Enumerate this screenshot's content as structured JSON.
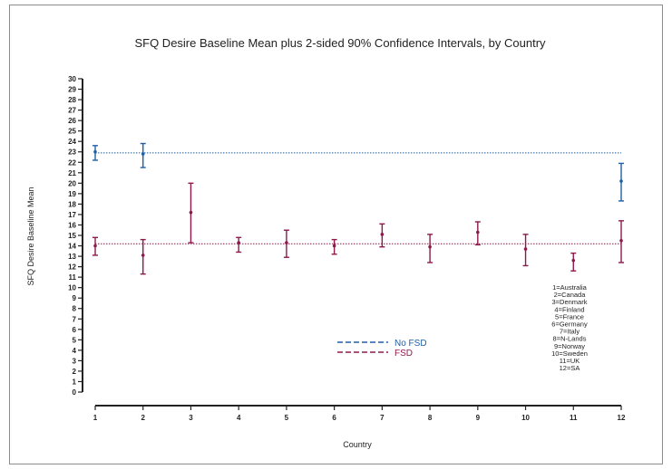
{
  "chart_data": {
    "type": "scatter",
    "title": "SFQ Desire Baseline Mean plus 2-sided 90% Confidence Intervals, by Country",
    "xlabel": "Country",
    "ylabel": "SFQ Desire Baseline Mean",
    "x_ticks": [
      "1",
      "2",
      "3",
      "4",
      "5",
      "6",
      "7",
      "8",
      "9",
      "10",
      "11",
      "12"
    ],
    "y_ticks": [
      "0",
      "1",
      "2",
      "3",
      "4",
      "5",
      "6",
      "7",
      "8",
      "9",
      "10",
      "11",
      "12",
      "13",
      "14",
      "15",
      "16",
      "17",
      "18",
      "19",
      "20",
      "21",
      "22",
      "23",
      "24",
      "25",
      "26",
      "27",
      "28",
      "29",
      "30"
    ],
    "ylim": [
      0,
      30
    ],
    "xlim": [
      1,
      12
    ],
    "series": [
      {
        "name": "No FSD",
        "color": "#1f5fa6",
        "reference_mean": 22.9,
        "points": [
          {
            "x": 1,
            "mean": 23.0,
            "lower": 22.2,
            "upper": 23.6
          },
          {
            "x": 2,
            "mean": 22.8,
            "lower": 21.5,
            "upper": 23.8
          },
          {
            "x": 12,
            "mean": 20.2,
            "lower": 18.3,
            "upper": 21.9
          }
        ]
      },
      {
        "name": "FSD",
        "color": "#8b1a4a",
        "reference_mean": 14.2,
        "points": [
          {
            "x": 1,
            "mean": 14.0,
            "lower": 13.1,
            "upper": 14.8
          },
          {
            "x": 2,
            "mean": 13.1,
            "lower": 11.3,
            "upper": 14.6
          },
          {
            "x": 3,
            "mean": 17.2,
            "lower": 14.3,
            "upper": 20.0
          },
          {
            "x": 4,
            "mean": 14.3,
            "lower": 13.4,
            "upper": 14.8
          },
          {
            "x": 5,
            "mean": 14.3,
            "lower": 12.9,
            "upper": 15.5
          },
          {
            "x": 6,
            "mean": 14.0,
            "lower": 13.2,
            "upper": 14.6
          },
          {
            "x": 7,
            "mean": 15.1,
            "lower": 13.9,
            "upper": 16.1
          },
          {
            "x": 8,
            "mean": 13.9,
            "lower": 12.4,
            "upper": 15.1
          },
          {
            "x": 9,
            "mean": 15.3,
            "lower": 14.1,
            "upper": 16.3
          },
          {
            "x": 10,
            "mean": 13.7,
            "lower": 12.1,
            "upper": 15.1
          },
          {
            "x": 11,
            "mean": 12.6,
            "lower": 11.6,
            "upper": 13.3
          },
          {
            "x": 12,
            "mean": 14.5,
            "lower": 12.4,
            "upper": 16.4
          }
        ]
      }
    ],
    "country_key": [
      "1=Australia",
      "2=Canada",
      "3=Denmark",
      "4=Finland",
      "5=France",
      "6=Germany",
      "7=Italy",
      "8=N-Lands",
      "9=Norway",
      "10=Sweden",
      "11=UK",
      "12=SA"
    ],
    "legend": [
      {
        "label": "No FSD",
        "color": "#1f5fa6"
      },
      {
        "label": "FSD",
        "color": "#8b1a4a"
      }
    ]
  }
}
